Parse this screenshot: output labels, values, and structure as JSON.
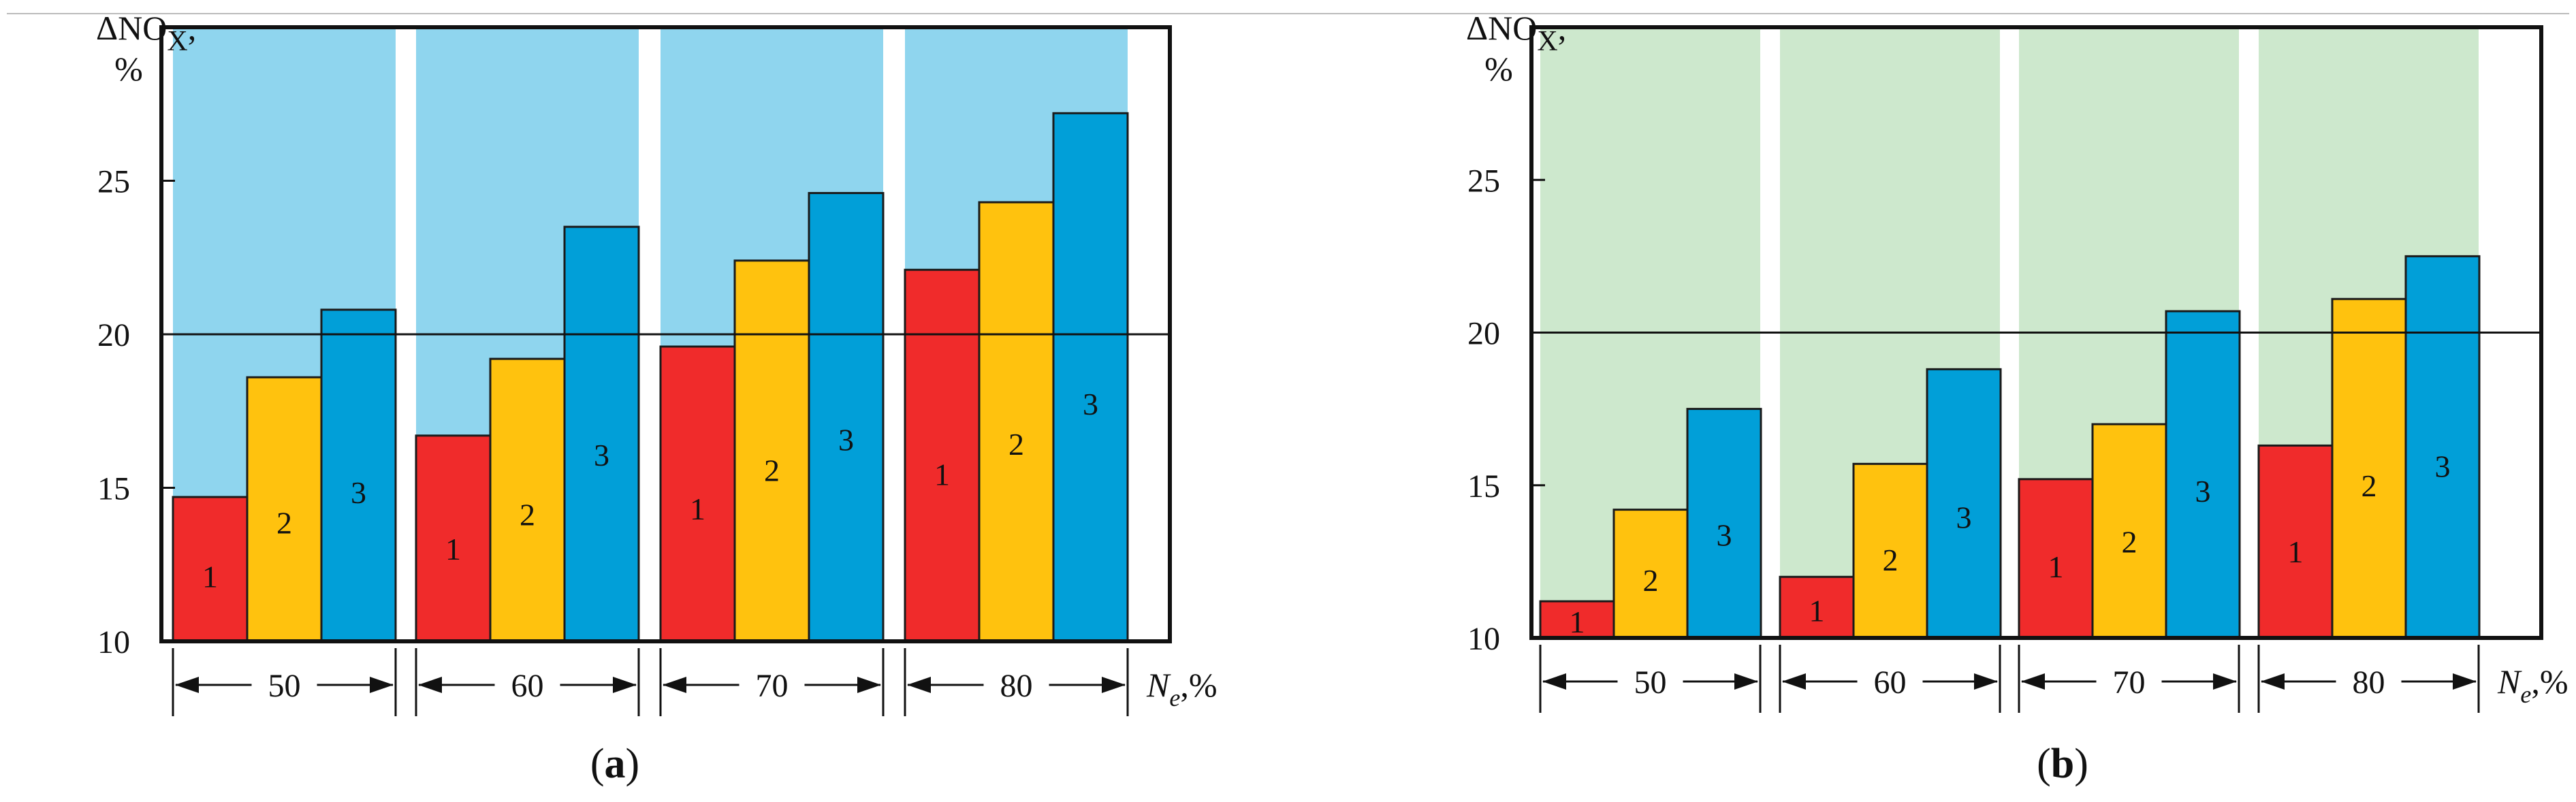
{
  "chart_data": [
    {
      "type": "bar",
      "panel_label": "(a)",
      "ylabel_main": "ΔNO",
      "ylabel_sub": "X",
      "ylabel_suffix": ",",
      "ylabel_unit": "%",
      "xlabel_main": "N",
      "xlabel_sub": "e",
      "xlabel_suffix": ",%",
      "ylim": [
        10,
        30
      ],
      "yticks": [
        "10",
        "15",
        "20",
        "25"
      ],
      "reference_line": 20,
      "band_color": "#8fd5ee",
      "categories": [
        "50",
        "60",
        "70",
        "80"
      ],
      "series": [
        {
          "name": "1",
          "color": "#f02b2b",
          "values": [
            14.7,
            16.7,
            19.6,
            22.1
          ]
        },
        {
          "name": "2",
          "color": "#ffc20e",
          "values": [
            18.6,
            19.2,
            22.4,
            24.3
          ]
        },
        {
          "name": "3",
          "color": "#019fd8",
          "values": [
            20.8,
            23.5,
            24.6,
            27.2
          ]
        }
      ]
    },
    {
      "type": "bar",
      "panel_label": "(b)",
      "ylabel_main": "ΔNO",
      "ylabel_sub": "X",
      "ylabel_suffix": ",",
      "ylabel_unit": "%",
      "xlabel_main": "N",
      "xlabel_sub": "e",
      "xlabel_suffix": ",%",
      "ylim": [
        10,
        30
      ],
      "yticks": [
        "10",
        "15",
        "20",
        "25"
      ],
      "reference_line": 20,
      "band_color": "#cde8cd",
      "categories": [
        "50",
        "60",
        "70",
        "80"
      ],
      "series": [
        {
          "name": "1",
          "color": "#f02b2b",
          "values": [
            11.2,
            12.0,
            15.2,
            16.3
          ]
        },
        {
          "name": "2",
          "color": "#ffc20e",
          "values": [
            14.2,
            15.7,
            17.0,
            21.1
          ]
        },
        {
          "name": "3",
          "color": "#019fd8",
          "values": [
            17.5,
            18.8,
            20.7,
            22.5
          ]
        }
      ]
    }
  ]
}
